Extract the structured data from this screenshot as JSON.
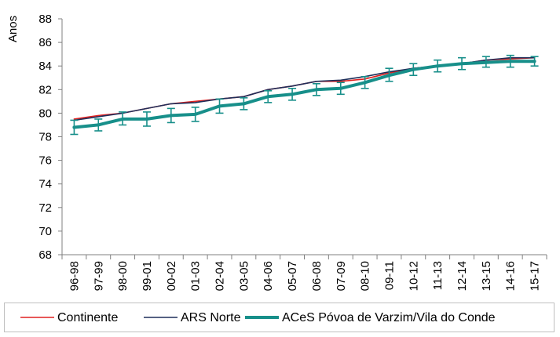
{
  "chart_data": {
    "type": "line",
    "title": "",
    "xlabel": "",
    "ylabel": "Anos",
    "ylim": [
      68,
      88
    ],
    "yticks": [
      68,
      70,
      72,
      74,
      76,
      78,
      80,
      82,
      84,
      86,
      88
    ],
    "grid": false,
    "legend_position": "bottom",
    "categories": [
      "96-98",
      "97-99",
      "98-00",
      "99-01",
      "00-02",
      "01-03",
      "02-04",
      "03-05",
      "04-06",
      "05-07",
      "06-08",
      "07-09",
      "08-10",
      "09-11",
      "10-12",
      "11-13",
      "12-14",
      "13-15",
      "14-16",
      "15-17"
    ],
    "series": [
      {
        "name": "Continente",
        "color": "#e02020",
        "line_width": "thin",
        "values": [
          79.5,
          79.8,
          80.0,
          80.4,
          80.8,
          81.0,
          81.2,
          81.4,
          82.0,
          82.3,
          82.7,
          82.7,
          82.9,
          83.4,
          83.8,
          84.0,
          84.2,
          84.5,
          84.6,
          84.7
        ]
      },
      {
        "name": "ARS Norte",
        "color": "#1f2f5a",
        "line_width": "thin",
        "values": [
          79.4,
          79.7,
          80.0,
          80.4,
          80.8,
          80.9,
          81.2,
          81.4,
          82.0,
          82.3,
          82.7,
          82.8,
          83.1,
          83.5,
          83.8,
          84.0,
          84.2,
          84.5,
          84.7,
          84.7
        ]
      },
      {
        "name": "ACeS Póvoa de Varzim/Vila do Conde",
        "color": "#178f8a",
        "line_width": "thick",
        "values": [
          78.8,
          79.0,
          79.5,
          79.5,
          79.8,
          79.9,
          80.6,
          80.8,
          81.4,
          81.6,
          82.0,
          82.1,
          82.6,
          83.2,
          83.7,
          84.0,
          84.2,
          84.3,
          84.4,
          84.4
        ],
        "error_low": [
          78.2,
          78.5,
          79.0,
          78.9,
          79.2,
          79.3,
          80.0,
          80.3,
          80.9,
          81.1,
          81.5,
          81.6,
          82.1,
          82.7,
          83.2,
          83.5,
          83.7,
          83.9,
          83.9,
          84.0
        ],
        "error_high": [
          79.4,
          79.5,
          80.1,
          80.1,
          80.4,
          80.5,
          81.2,
          81.3,
          81.9,
          82.1,
          82.5,
          82.6,
          83.1,
          83.8,
          84.2,
          84.5,
          84.7,
          84.8,
          84.9,
          84.8
        ]
      }
    ]
  }
}
